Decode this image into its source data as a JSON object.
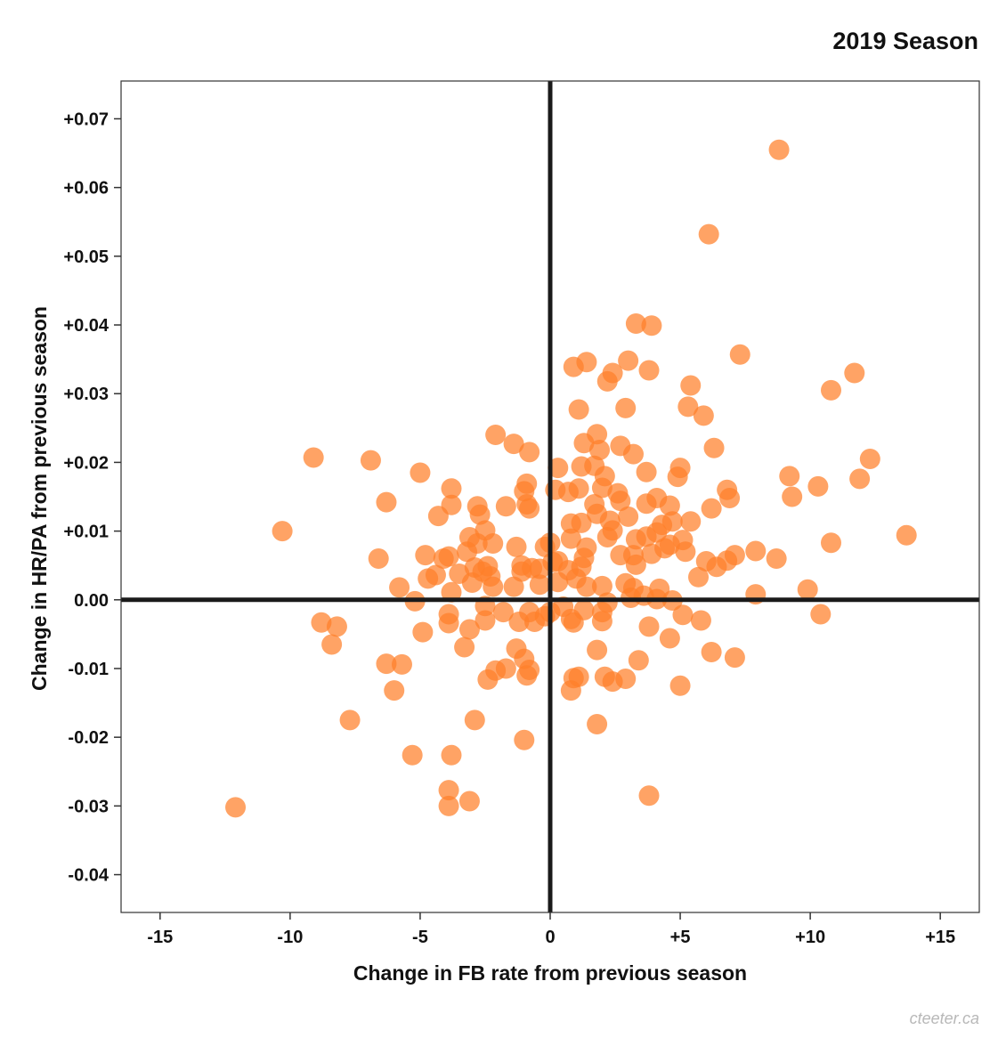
{
  "chart_data": {
    "type": "scatter",
    "title": "2019 Season",
    "xlabel": "Change in FB rate from previous season",
    "ylabel": "Change in HR/PA from previous season",
    "credit": "cteeter.ca",
    "xlim": [
      -16.5,
      16.5
    ],
    "ylim": [
      -0.0455,
      0.0755
    ],
    "grid": false,
    "reference_lines": {
      "x": 0,
      "y": 0
    },
    "colors": {
      "point": "#ff7f2a",
      "axis": "#1a1a1a",
      "frame": "#333333"
    },
    "xticks": [
      {
        "value": -15,
        "label": "-15"
      },
      {
        "value": -10,
        "label": "-10"
      },
      {
        "value": -5,
        "label": "-5"
      },
      {
        "value": 0,
        "label": "0"
      },
      {
        "value": 5,
        "label": "+5"
      },
      {
        "value": 10,
        "label": "+10"
      },
      {
        "value": 15,
        "label": "+15"
      }
    ],
    "yticks": [
      {
        "value": 0.07,
        "label": "+0.07"
      },
      {
        "value": 0.06,
        "label": "+0.06"
      },
      {
        "value": 0.05,
        "label": "+0.05"
      },
      {
        "value": 0.04,
        "label": "+0.04"
      },
      {
        "value": 0.03,
        "label": "+0.03"
      },
      {
        "value": 0.02,
        "label": "+0.02"
      },
      {
        "value": 0.01,
        "label": "+0.01"
      },
      {
        "value": 0.0,
        "label": "0.00"
      },
      {
        "value": -0.01,
        "label": "-0.01"
      },
      {
        "value": -0.02,
        "label": "-0.02"
      },
      {
        "value": -0.03,
        "label": "-0.03"
      },
      {
        "value": -0.04,
        "label": "-0.04"
      }
    ],
    "points": [
      [
        8.8,
        0.0655
      ],
      [
        6.1,
        0.0532
      ],
      [
        3.3,
        0.0402
      ],
      [
        3.9,
        0.0399
      ],
      [
        7.3,
        0.0357
      ],
      [
        1.4,
        0.0346
      ],
      [
        0.9,
        0.0339
      ],
      [
        3.0,
        0.0348
      ],
      [
        3.8,
        0.0334
      ],
      [
        2.4,
        0.033
      ],
      [
        2.2,
        0.0318
      ],
      [
        5.4,
        0.0312
      ],
      [
        11.7,
        0.033
      ],
      [
        10.8,
        0.0305
      ],
      [
        1.1,
        0.0277
      ],
      [
        2.9,
        0.0279
      ],
      [
        5.3,
        0.0281
      ],
      [
        5.9,
        0.0268
      ],
      [
        -2.1,
        0.024
      ],
      [
        -1.4,
        0.0227
      ],
      [
        -0.8,
        0.0215
      ],
      [
        1.8,
        0.0241
      ],
      [
        1.3,
        0.0228
      ],
      [
        2.7,
        0.0224
      ],
      [
        3.2,
        0.0212
      ],
      [
        6.3,
        0.0221
      ],
      [
        1.9,
        0.0218
      ],
      [
        -9.1,
        0.0207
      ],
      [
        -6.9,
        0.0203
      ],
      [
        -5.0,
        0.0185
      ],
      [
        0.3,
        0.0192
      ],
      [
        1.7,
        0.0195
      ],
      [
        1.2,
        0.0194
      ],
      [
        3.7,
        0.0186
      ],
      [
        5.0,
        0.0192
      ],
      [
        4.9,
        0.0179
      ],
      [
        9.2,
        0.018
      ],
      [
        12.3,
        0.0205
      ],
      [
        11.9,
        0.0176
      ],
      [
        10.3,
        0.0165
      ],
      [
        2.1,
        0.018
      ],
      [
        -3.8,
        0.0162
      ],
      [
        -0.9,
        0.0169
      ],
      [
        -1.0,
        0.0158
      ],
      [
        0.7,
        0.0157
      ],
      [
        1.1,
        0.0162
      ],
      [
        2.0,
        0.0163
      ],
      [
        2.6,
        0.0155
      ],
      [
        6.8,
        0.016
      ],
      [
        9.3,
        0.015
      ],
      [
        -6.3,
        0.0142
      ],
      [
        -3.8,
        0.0138
      ],
      [
        -1.7,
        0.0136
      ],
      [
        -0.9,
        0.0139
      ],
      [
        -0.8,
        0.0133
      ],
      [
        0.2,
        0.016
      ],
      [
        1.7,
        0.0139
      ],
      [
        2.7,
        0.0144
      ],
      [
        3.7,
        0.014
      ],
      [
        4.1,
        0.0148
      ],
      [
        4.6,
        0.0137
      ],
      [
        6.9,
        0.0148
      ],
      [
        6.2,
        0.0133
      ],
      [
        -4.3,
        0.0122
      ],
      [
        -2.8,
        0.0136
      ],
      [
        -2.7,
        0.0124
      ],
      [
        0.8,
        0.0111
      ],
      [
        1.2,
        0.0112
      ],
      [
        1.8,
        0.0125
      ],
      [
        2.3,
        0.0115
      ],
      [
        2.4,
        0.0101
      ],
      [
        3.0,
        0.0121
      ],
      [
        4.3,
        0.0109
      ],
      [
        4.7,
        0.0114
      ],
      [
        5.4,
        0.0114
      ],
      [
        13.7,
        0.0094
      ],
      [
        -10.3,
        0.01
      ],
      [
        -3.1,
        0.0091
      ],
      [
        -2.5,
        0.0101
      ],
      [
        -2.8,
        0.0082
      ],
      [
        -1.3,
        0.0077
      ],
      [
        -0.2,
        0.0077
      ],
      [
        0.0,
        0.0083
      ],
      [
        0.8,
        0.0089
      ],
      [
        1.4,
        0.0076
      ],
      [
        2.2,
        0.0091
      ],
      [
        3.3,
        0.0088
      ],
      [
        3.7,
        0.0092
      ],
      [
        4.1,
        0.0098
      ],
      [
        4.6,
        0.008
      ],
      [
        5.1,
        0.0087
      ],
      [
        7.1,
        0.0065
      ],
      [
        7.9,
        0.0071
      ],
      [
        8.7,
        0.006
      ],
      [
        10.8,
        0.0083
      ],
      [
        -6.6,
        0.006
      ],
      [
        -4.8,
        0.0065
      ],
      [
        -4.1,
        0.006
      ],
      [
        -3.9,
        0.0063
      ],
      [
        -3.2,
        0.007
      ],
      [
        -2.2,
        0.0082
      ],
      [
        -1.1,
        0.005
      ],
      [
        -0.7,
        0.0046
      ],
      [
        0.3,
        0.0056
      ],
      [
        1.3,
        0.0061
      ],
      [
        1.2,
        0.0048
      ],
      [
        2.7,
        0.0065
      ],
      [
        3.2,
        0.0065
      ],
      [
        3.3,
        0.0051
      ],
      [
        3.9,
        0.0067
      ],
      [
        4.4,
        0.0075
      ],
      [
        5.2,
        0.007
      ],
      [
        6.0,
        0.0056
      ],
      [
        6.4,
        0.0048
      ],
      [
        6.8,
        0.0057
      ],
      [
        -2.9,
        0.0047
      ],
      [
        -2.6,
        0.0041
      ],
      [
        -2.4,
        0.0049
      ],
      [
        -2.3,
        0.0034
      ],
      [
        -3.5,
        0.0038
      ],
      [
        -1.1,
        0.0041
      ],
      [
        -0.4,
        0.0045
      ],
      [
        0.1,
        0.0055
      ],
      [
        0.7,
        0.0043
      ],
      [
        1.0,
        0.0031
      ],
      [
        -5.8,
        0.0018
      ],
      [
        -4.7,
        0.0031
      ],
      [
        -4.4,
        0.0036
      ],
      [
        -3.8,
        0.0011
      ],
      [
        -3.0,
        0.0025
      ],
      [
        -2.2,
        0.0019
      ],
      [
        -1.4,
        0.0019
      ],
      [
        -0.4,
        0.0022
      ],
      [
        0.3,
        0.0026
      ],
      [
        1.4,
        0.0019
      ],
      [
        2.0,
        0.002
      ],
      [
        2.9,
        0.0024
      ],
      [
        3.2,
        0.0017
      ],
      [
        4.2,
        0.0016
      ],
      [
        5.7,
        0.0033
      ],
      [
        7.9,
        0.0008
      ],
      [
        9.9,
        0.0015
      ],
      [
        -5.2,
        -0.0002
      ],
      [
        -2.5,
        -0.0009
      ],
      [
        -1.8,
        -0.0018
      ],
      [
        -0.8,
        -0.0018
      ],
      [
        -0.2,
        -0.0024
      ],
      [
        0.5,
        -0.001
      ],
      [
        0.8,
        -0.0028
      ],
      [
        1.3,
        -0.0015
      ],
      [
        2.0,
        -0.0018
      ],
      [
        2.2,
        -0.0004
      ],
      [
        3.1,
        0.0003
      ],
      [
        3.6,
        0.0006
      ],
      [
        4.1,
        0.0001
      ],
      [
        4.7,
        -0.0001
      ],
      [
        5.1,
        -0.0022
      ],
      [
        10.4,
        -0.0021
      ],
      [
        -8.8,
        -0.0033
      ],
      [
        -8.2,
        -0.0039
      ],
      [
        -4.9,
        -0.0047
      ],
      [
        -3.9,
        -0.0021
      ],
      [
        -3.9,
        -0.0034
      ],
      [
        -3.1,
        -0.0043
      ],
      [
        -2.5,
        -0.003
      ],
      [
        -1.2,
        -0.0032
      ],
      [
        -0.6,
        -0.0032
      ],
      [
        0.0,
        -0.0018
      ],
      [
        0.9,
        -0.0033
      ],
      [
        2.0,
        -0.0031
      ],
      [
        3.8,
        -0.0039
      ],
      [
        4.6,
        -0.0056
      ],
      [
        5.8,
        -0.003
      ],
      [
        -8.4,
        -0.0065
      ],
      [
        -6.3,
        -0.0093
      ],
      [
        -5.7,
        -0.0094
      ],
      [
        -3.3,
        -0.0069
      ],
      [
        -1.3,
        -0.0071
      ],
      [
        -1.0,
        -0.0086
      ],
      [
        -0.8,
        -0.0102
      ],
      [
        -0.9,
        -0.011
      ],
      [
        1.8,
        -0.0073
      ],
      [
        3.4,
        -0.0088
      ],
      [
        6.2,
        -0.0076
      ],
      [
        7.1,
        -0.0084
      ],
      [
        -6.0,
        -0.0132
      ],
      [
        -2.4,
        -0.0116
      ],
      [
        -2.1,
        -0.0103
      ],
      [
        -1.7,
        -0.01
      ],
      [
        0.9,
        -0.0114
      ],
      [
        0.8,
        -0.0132
      ],
      [
        1.1,
        -0.0112
      ],
      [
        2.1,
        -0.0112
      ],
      [
        2.4,
        -0.0119
      ],
      [
        2.9,
        -0.0115
      ],
      [
        5.0,
        -0.0125
      ],
      [
        -7.7,
        -0.0175
      ],
      [
        -2.9,
        -0.0175
      ],
      [
        -1.0,
        -0.0204
      ],
      [
        1.8,
        -0.0181
      ],
      [
        -5.3,
        -0.0226
      ],
      [
        -3.8,
        -0.0226
      ],
      [
        -3.9,
        -0.0277
      ],
      [
        -3.9,
        -0.03
      ],
      [
        -3.1,
        -0.0293
      ],
      [
        -12.1,
        -0.0302
      ],
      [
        3.8,
        -0.0285
      ]
    ]
  }
}
